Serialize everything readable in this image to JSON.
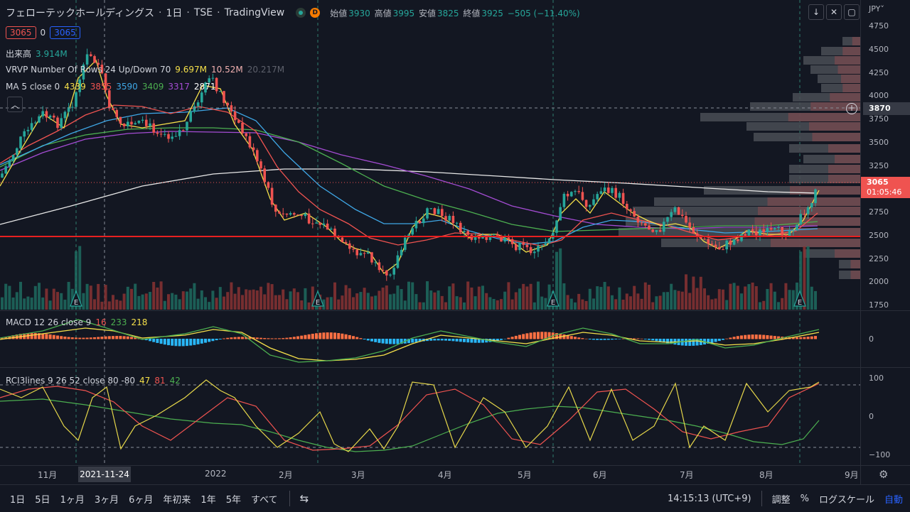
{
  "header": {
    "symbol_name": "フェローテックホールディングス",
    "interval": "1日",
    "exchange": "TSE",
    "platform": "TradingView",
    "market_badge": "D",
    "open_label": "始値",
    "open_value": "3930",
    "high_label": "高値",
    "high_value": "3995",
    "low_label": "安値",
    "low_value": "3825",
    "close_label": "終値",
    "close_value": "3925",
    "change_value": "−505 (−11.40%)"
  },
  "trade_box": {
    "sell": "3065",
    "spread": "0",
    "buy": "3065"
  },
  "legends": {
    "volume_label": "出来高",
    "volume_value": "3.914M",
    "vrvp_label": "VRVP Number Of Rows 24 Up/Down 70",
    "vrvp_v1": "9.697M",
    "vrvp_v2": "10.52M",
    "vrvp_v3": "20.217M",
    "ma_label": "MA 5 close 0",
    "ma_v1": "4339",
    "ma_v2": "3855",
    "ma_v3": "3590",
    "ma_v4": "3409",
    "ma_v5": "3317",
    "ma_v6": "2871",
    "macd_label": "MACD 12 26 close 9",
    "macd_v1": "16",
    "macd_v2": "233",
    "macd_v3": "218",
    "rci_label": "RCI3lines 9 26 52 close 80 -80",
    "rci_v1": "47",
    "rci_v2": "81",
    "rci_v3": "42"
  },
  "price_axis": {
    "currency": "JPY",
    "ticks": [
      "4750",
      "4500",
      "4250",
      "4000",
      "3750",
      "3500",
      "3250",
      "3000",
      "2750",
      "2500",
      "2250",
      "2000",
      "1750"
    ],
    "crosshair_price": "3870",
    "last_price": "3065",
    "countdown": "01:05:46"
  },
  "macd_axis": {
    "ticks": [
      "0"
    ]
  },
  "rci_axis": {
    "ticks": [
      "100",
      "0",
      "−100"
    ]
  },
  "time_axis": {
    "labels": [
      "11月",
      "2022",
      "2月",
      "3月",
      "4月",
      "5月",
      "6月",
      "7月",
      "8月",
      "9月"
    ],
    "cursor_date": "2021-11-24"
  },
  "events": [
    "E",
    "E",
    "E",
    "E",
    "E"
  ],
  "bottom_toolbar": {
    "timeframes": [
      "1日",
      "5日",
      "1ヶ月",
      "3ヶ月",
      "6ヶ月",
      "年初来",
      "1年",
      "5年",
      "すべて"
    ],
    "clock": "14:15:13 (UTC+9)",
    "adjust": "調整",
    "percent": "%",
    "log_scale": "ログスケール",
    "auto": "自動"
  },
  "colors": {
    "up": "#26a69a",
    "down": "#ef5350",
    "bg": "#131722",
    "ma5": "#f5e04a",
    "ma_long": "#ffffff"
  },
  "chart_data": {
    "type": "candlestick",
    "x": [
      "2021-10",
      "2021-11",
      "2021-12",
      "2022-01",
      "2022-02",
      "2022-03",
      "2022-04",
      "2022-05",
      "2022-06",
      "2022-07",
      "2022-08"
    ],
    "close": [
      3000,
      3700,
      3600,
      3900,
      2900,
      2200,
      2750,
      2400,
      2950,
      2450,
      3065
    ],
    "ylim": [
      1750,
      4750
    ]
  }
}
